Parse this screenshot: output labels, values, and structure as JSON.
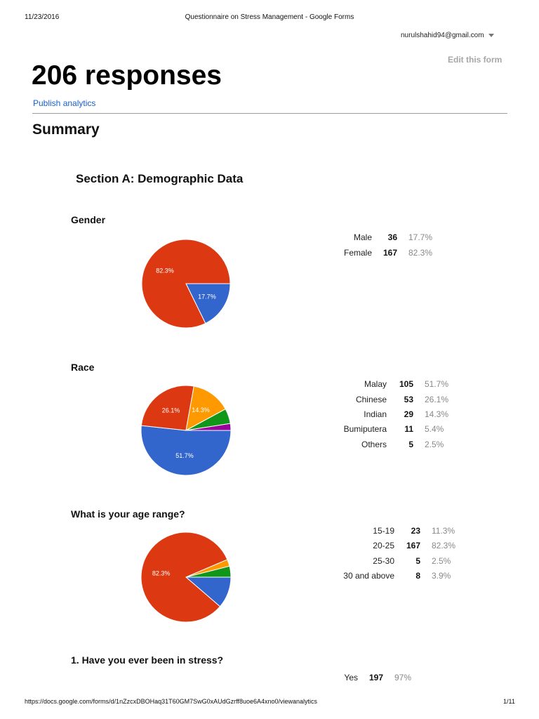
{
  "print_header": {
    "date": "11/23/2016",
    "title": "Questionnaire on Stress Management - Google Forms"
  },
  "account": {
    "email": "nurulshahid94@gmail.com"
  },
  "edit_form_label": "Edit this form",
  "responses_title": "206 responses",
  "publish_analytics_label": "Publish analytics",
  "summary_heading": "Summary",
  "section_title": "Section A: Demographic Data",
  "colors": {
    "blue": "#3366cc",
    "red": "#dc3912",
    "orange": "#ff9900",
    "green": "#109618",
    "purple": "#990099"
  },
  "questions": [
    {
      "title": "Gender",
      "rows": [
        {
          "label": "Male",
          "count": "36",
          "percent": "17.7%"
        },
        {
          "label": "Female",
          "count": "167",
          "percent": "82.3%"
        }
      ]
    },
    {
      "title": "Race",
      "rows": [
        {
          "label": "Malay",
          "count": "105",
          "percent": "51.7%"
        },
        {
          "label": "Chinese",
          "count": "53",
          "percent": "26.1%"
        },
        {
          "label": "Indian",
          "count": "29",
          "percent": "14.3%"
        },
        {
          "label": "Bumiputera",
          "count": "11",
          "percent": "5.4%"
        },
        {
          "label": "Others",
          "count": "5",
          "percent": "2.5%"
        }
      ]
    },
    {
      "title": "What is your age range?",
      "rows": [
        {
          "label": "15-19",
          "count": "23",
          "percent": "11.3%"
        },
        {
          "label": "20-25",
          "count": "167",
          "percent": "82.3%"
        },
        {
          "label": "25-30",
          "count": "5",
          "percent": "2.5%"
        },
        {
          "label": "30 and above",
          "count": "8",
          "percent": "3.9%"
        }
      ]
    },
    {
      "title": "1. Have you ever been in stress?",
      "rows": [
        {
          "label": "Yes",
          "count": "197",
          "percent": "97%"
        }
      ]
    }
  ],
  "chart_data": [
    {
      "type": "pie",
      "title": "Gender",
      "categories": [
        "Male",
        "Female"
      ],
      "values": [
        36,
        167
      ],
      "slice_labels": [
        "17.7%",
        "82.3%"
      ],
      "colors": [
        "#3366cc",
        "#dc3912"
      ]
    },
    {
      "type": "pie",
      "title": "Race",
      "categories": [
        "Malay",
        "Chinese",
        "Indian",
        "Bumiputera",
        "Others"
      ],
      "values": [
        105,
        53,
        29,
        11,
        5
      ],
      "slice_labels": [
        "51.7%",
        "26.1%",
        "14.3%",
        "",
        ""
      ],
      "colors": [
        "#3366cc",
        "#dc3912",
        "#ff9900",
        "#109618",
        "#990099"
      ]
    },
    {
      "type": "pie",
      "title": "What is your age range?",
      "categories": [
        "15-19",
        "20-25",
        "25-30",
        "30 and above"
      ],
      "values": [
        23,
        167,
        5,
        8
      ],
      "slice_labels": [
        "",
        "82.3%",
        "",
        ""
      ],
      "colors": [
        "#3366cc",
        "#dc3912",
        "#ff9900",
        "#109618"
      ]
    }
  ],
  "footer": {
    "url": "https://docs.google.com/forms/d/1nZzcxDBOHaq31T60GM7SwG0xAUdGzrff8uoe6A4xno0/viewanalytics",
    "page": "1/11"
  }
}
